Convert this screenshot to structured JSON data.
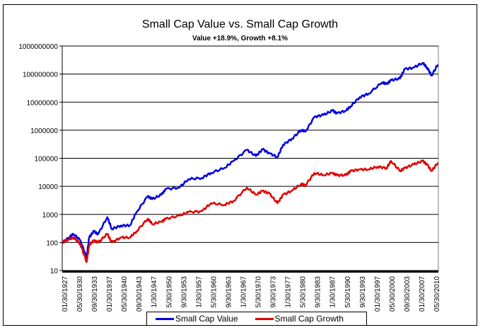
{
  "chart_data": {
    "type": "line",
    "title": "Small Cap Value vs. Small Cap Growth",
    "subtitle": "Value +18.9%, Growth +8.1%",
    "y_scale": "log",
    "ylim": [
      10,
      1000000000
    ],
    "y_ticks": [
      "10",
      "100",
      "1000",
      "10000",
      "100000",
      "1000000",
      "10000000",
      "100000000",
      "1000000000"
    ],
    "x_ticks": [
      "01/30/1927",
      "05/30/1930",
      "09/30/1933",
      "01/30/1937",
      "05/30/1940",
      "09/30/1943",
      "1/30/1947",
      "5/30/1950",
      "9/30/1953",
      "1/30/1957",
      "5/30/1960",
      "9/30/1963",
      "1/30/1967",
      "5/30/1970",
      "9/30/1973",
      "1/30/1977",
      "5/30/1980",
      "9/30/1983",
      "1/30/1987",
      "5/30/1990",
      "9/30/1993",
      "01/30/1997",
      "05/30/2000",
      "09/30/2003",
      "01/30/2007",
      "05/30/2010"
    ],
    "xlim": [
      1927,
      2010.5
    ],
    "grid": "horizontal",
    "legend_placement": "bottom",
    "series": [
      {
        "name": "Small Cap Value",
        "color": "#0000e0",
        "x": [
          1927,
          1928.5,
          1929.5,
          1931,
          1932.4,
          1933,
          1934,
          1935,
          1937,
          1938,
          1940,
          1942,
          1943.5,
          1946,
          1947,
          1949,
          1950,
          1953,
          1955,
          1958,
          1960,
          1963,
          1965,
          1968,
          1970,
          1971.5,
          1973,
          1974.8,
          1976,
          1978,
          1980,
          1981,
          1983,
          1985,
          1987,
          1988,
          1990,
          1991,
          1993,
          1995,
          1998,
          1999,
          2000,
          2002,
          2003,
          2005,
          2007,
          2008,
          2009,
          2010.4
        ],
        "y": [
          100,
          150,
          200,
          120,
          30,
          150,
          250,
          200,
          800,
          300,
          400,
          400,
          1200,
          4500,
          3500,
          5000,
          8000,
          9000,
          18000,
          20000,
          30000,
          45000,
          80000,
          200000,
          120000,
          210000,
          150000,
          110000,
          300000,
          500000,
          1000000,
          900000,
          3000000,
          3500000,
          5000000,
          4000000,
          5000000,
          7000000,
          15000000,
          20000000,
          50000000,
          45000000,
          60000000,
          70000000,
          150000000,
          170000000,
          250000000,
          170000000,
          90000000,
          220000000
        ]
      },
      {
        "name": "Small Cap Growth",
        "color": "#e00000",
        "x": [
          1927,
          1928.5,
          1929.5,
          1931,
          1932.4,
          1933,
          1934,
          1935,
          1937,
          1938,
          1940,
          1942,
          1943.5,
          1946,
          1947,
          1949,
          1950,
          1953,
          1955,
          1958,
          1960,
          1963,
          1965,
          1968,
          1970,
          1971.5,
          1973,
          1974.8,
          1976,
          1978,
          1980,
          1981,
          1983,
          1985,
          1987,
          1988,
          1990,
          1991,
          1993,
          1995,
          1997,
          1999,
          2000,
          2002,
          2003,
          2005,
          2007,
          2008,
          2009,
          2010.4
        ],
        "y": [
          100,
          130,
          150,
          90,
          20,
          80,
          120,
          100,
          200,
          100,
          150,
          150,
          250,
          700,
          450,
          550,
          700,
          900,
          1200,
          1300,
          2500,
          2200,
          3000,
          9000,
          5000,
          7000,
          5500,
          2500,
          5000,
          7000,
          12000,
          11000,
          30000,
          25000,
          30000,
          25000,
          25000,
          35000,
          40000,
          40000,
          50000,
          45000,
          80000,
          35000,
          45000,
          60000,
          80000,
          60000,
          35000,
          70000
        ]
      }
    ]
  }
}
